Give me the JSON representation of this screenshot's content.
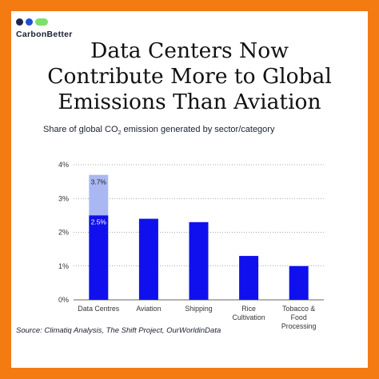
{
  "brand": {
    "name": "CarbonBetter"
  },
  "title_lines": [
    "Data Centers Now",
    "Contribute More to Global",
    "Emissions Than Aviation"
  ],
  "subtitle": {
    "before": "Share of global CO",
    "subscript": "2",
    "after": " emission generated by sector/category"
  },
  "source": "Source: Climatiq Analysis, The Shift Project, OurWorldinData",
  "colors": {
    "frame": "#f47a12",
    "bar": "#1010ee",
    "bar_extra": "#a9b8f2",
    "axis": "#333333",
    "grid": "#555555"
  },
  "chart_data": {
    "type": "bar",
    "categories": [
      "Data Centres",
      "Aviation",
      "Shipping",
      "Rice Cultivation",
      "Tobacco & Food Processing"
    ],
    "category_labels": [
      [
        "Data Centres"
      ],
      [
        "Aviation"
      ],
      [
        "Shipping"
      ],
      [
        "Rice",
        "Cultivation"
      ],
      [
        "Tobacco &",
        "Food",
        "Processing"
      ]
    ],
    "values": [
      2.5,
      2.4,
      2.3,
      1.3,
      1.0
    ],
    "upper_estimate": {
      "category": "Data Centres",
      "value": 3.7,
      "label": "3.7%"
    },
    "data_labels": [
      {
        "category": "Data Centres",
        "label": "2.5%"
      }
    ],
    "ylim": [
      0,
      4
    ],
    "yticks": [
      0,
      1,
      2,
      3,
      4
    ],
    "ytick_labels": [
      "0%",
      "1%",
      "2%",
      "3%",
      "4%"
    ],
    "y_unit": "%",
    "xlabel": "",
    "ylabel": ""
  }
}
